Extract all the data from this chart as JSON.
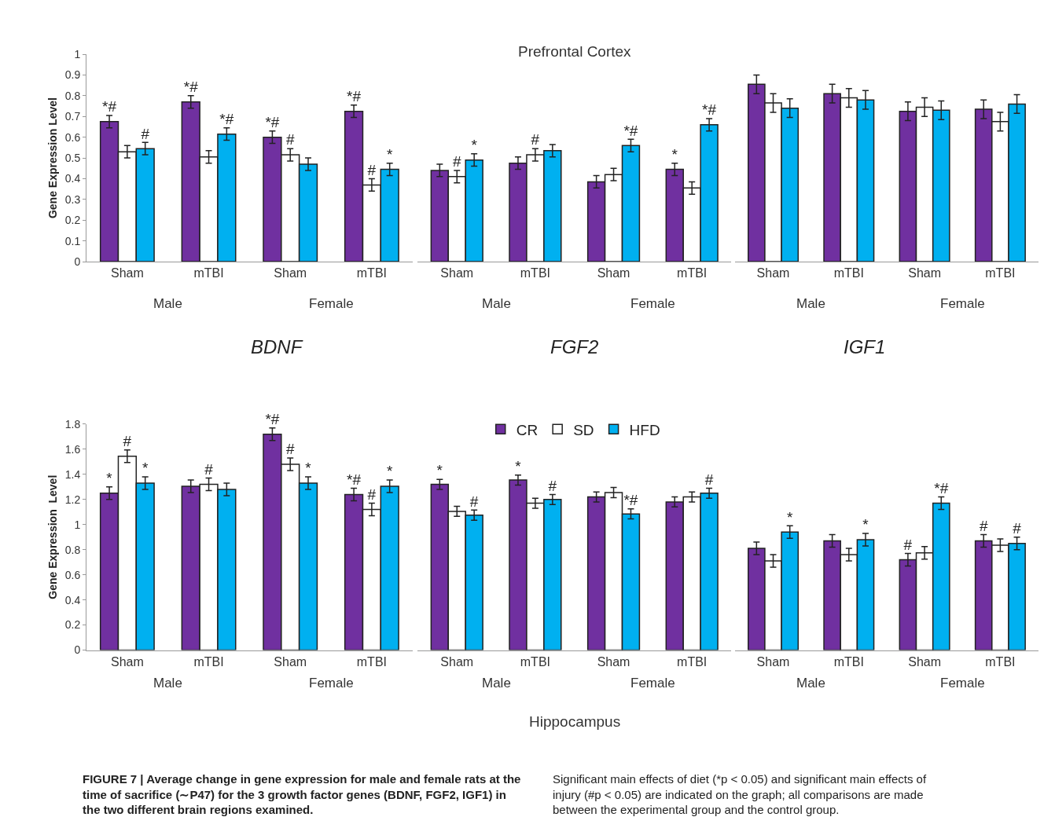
{
  "chart_data": [
    {
      "type": "bar",
      "ylabel": "Gene Expression Level",
      "xlabel": "BDNF",
      "categories": [
        "Sham",
        "mTBI",
        "Sham",
        "mTBI"
      ],
      "ylim": [
        0,
        1
      ],
      "yticks": [
        0,
        0.1,
        0.2,
        0.3,
        0.4,
        0.5,
        0.6,
        0.7,
        0.8,
        0.9,
        1
      ],
      "annotations": [
        "Male",
        "Female"
      ],
      "series": [
        {
          "color": "#7030a0",
          "values": [
            0.675,
            0.77,
            0.6,
            0.725
          ],
          "errors": [
            0.03,
            0.03,
            0.03,
            0.03
          ],
          "value_labels": [
            "*#",
            "*#",
            "*#",
            "*#"
          ]
        },
        {
          "color": "#ffffff",
          "values": [
            0.53,
            0.505,
            0.515,
            0.37
          ],
          "errors": [
            0.03,
            0.03,
            0.03,
            0.03
          ],
          "value_labels": [
            null,
            null,
            "#",
            "#"
          ]
        },
        {
          "color": "#00b0f0",
          "values": [
            0.545,
            0.615,
            0.47,
            0.445
          ],
          "errors": [
            0.03,
            0.03,
            0.03,
            0.03
          ],
          "value_labels": [
            "#",
            "*#",
            null,
            "*"
          ]
        }
      ]
    },
    {
      "type": "bar",
      "title": "Prefrontal Cortex",
      "xlabel": "FGF2",
      "categories": [
        "Sham",
        "mTBI",
        "Sham",
        "mTBI"
      ],
      "ylim": [
        0,
        1
      ],
      "yticks": [
        0,
        0.1,
        0.2,
        0.3,
        0.4,
        0.5,
        0.6,
        0.7,
        0.8,
        0.9,
        1
      ],
      "tick_labels": "x",
      "annotations": [
        "Male",
        "Female"
      ],
      "series": [
        {
          "color": "#7030a0",
          "values": [
            0.44,
            0.475,
            0.385,
            0.445
          ],
          "errors": [
            0.03,
            0.03,
            0.03,
            0.03
          ],
          "value_labels": [
            null,
            null,
            null,
            "*"
          ]
        },
        {
          "color": "#ffffff",
          "values": [
            0.41,
            0.515,
            0.42,
            0.355
          ],
          "errors": [
            0.03,
            0.03,
            0.03,
            0.03
          ],
          "value_labels": [
            "#",
            "#",
            null,
            null
          ]
        },
        {
          "color": "#00b0f0",
          "values": [
            0.49,
            0.535,
            0.56,
            0.66
          ],
          "errors": [
            0.03,
            0.03,
            0.03,
            0.03
          ],
          "value_labels": [
            "*",
            null,
            "*#",
            "*#"
          ]
        }
      ]
    },
    {
      "type": "bar",
      "xlabel": "IGF1",
      "categories": [
        "Sham",
        "mTBI",
        "Sham",
        "mTBI"
      ],
      "ylim": [
        0,
        1
      ],
      "yticks": [
        0,
        0.1,
        0.2,
        0.3,
        0.4,
        0.5,
        0.6,
        0.7,
        0.8,
        0.9,
        1
      ],
      "tick_labels": "x",
      "annotations": [
        "Male",
        "Female"
      ],
      "series": [
        {
          "color": "#7030a0",
          "values": [
            0.855,
            0.81,
            0.725,
            0.735
          ],
          "errors": [
            0.045,
            0.045,
            0.045,
            0.045
          ]
        },
        {
          "color": "#ffffff",
          "values": [
            0.765,
            0.79,
            0.745,
            0.675
          ],
          "errors": [
            0.045,
            0.045,
            0.045,
            0.045
          ]
        },
        {
          "color": "#00b0f0",
          "values": [
            0.74,
            0.78,
            0.73,
            0.76
          ],
          "errors": [
            0.045,
            0.045,
            0.045,
            0.045
          ]
        }
      ]
    },
    {
      "type": "bar",
      "ylabel": "Gene Expression  Level",
      "categories": [
        "Sham",
        "mTBI",
        "Sham",
        "mTBI"
      ],
      "ylim": [
        0,
        1.8
      ],
      "yticks": [
        0,
        0.2,
        0.4,
        0.6,
        0.8,
        1,
        1.2,
        1.4,
        1.6,
        1.8
      ],
      "annotations": [
        "Male",
        "Female",
        "FIGURE 7 | Average change in gene expression for male and female rats at the time of sacrifice (∼P47) for the 3 growth factor genes (BDNF, FGF2, IGF1) in the two different brain regions examined.",
        "Significant main effects of diet (*p < 0.05) and significant main effects of injury (#p < 0.05) are indicated on the graph; all comparisons are made between the experimental group and the control group."
      ],
      "series": [
        {
          "color": "#7030a0",
          "values": [
            1.25,
            1.305,
            1.72,
            1.24
          ],
          "errors": [
            0.05,
            0.05,
            0.05,
            0.05
          ],
          "value_labels": [
            "*",
            null,
            "*#",
            "*#"
          ]
        },
        {
          "color": "#ffffff",
          "values": [
            1.545,
            1.32,
            1.48,
            1.12
          ],
          "errors": [
            0.05,
            0.05,
            0.05,
            0.05
          ],
          "value_labels": [
            "#",
            "#",
            "#",
            "#"
          ]
        },
        {
          "color": "#00b0f0",
          "values": [
            1.33,
            1.28,
            1.33,
            1.305
          ],
          "errors": [
            0.05,
            0.05,
            0.05,
            0.05
          ],
          "value_labels": [
            "*",
            null,
            "*",
            "*"
          ]
        }
      ]
    },
    {
      "type": "bar",
      "xlabel": "Hippocampus",
      "categories": [
        "Sham",
        "mTBI",
        "Sham",
        "mTBI"
      ],
      "ylim": [
        0,
        1.8
      ],
      "yticks": [
        0,
        0.2,
        0.4,
        0.6,
        0.8,
        1,
        1.2,
        1.4,
        1.6,
        1.8
      ],
      "tick_labels": "x",
      "legend": "top",
      "annotations": [
        "Male",
        "Female"
      ],
      "series": [
        {
          "name": "CR",
          "color": "#7030a0",
          "values": [
            1.32,
            1.355,
            1.22,
            1.18
          ],
          "errors": [
            0.04,
            0.04,
            0.04,
            0.04
          ],
          "value_labels": [
            "*",
            "*",
            null,
            null
          ]
        },
        {
          "name": "SD",
          "color": "#ffffff",
          "values": [
            1.105,
            1.17,
            1.255,
            1.22
          ],
          "errors": [
            0.04,
            0.04,
            0.04,
            0.04
          ]
        },
        {
          "name": "HFD",
          "color": "#00b0f0",
          "values": [
            1.075,
            1.2,
            1.085,
            1.25
          ],
          "errors": [
            0.04,
            0.04,
            0.04,
            0.04
          ],
          "value_labels": [
            "#",
            "#",
            "*#",
            "#"
          ]
        }
      ]
    },
    {
      "type": "bar",
      "categories": [
        "Sham",
        "mTBI",
        "Sham",
        "mTBI"
      ],
      "ylim": [
        0,
        1.8
      ],
      "yticks": [
        0,
        0.2,
        0.4,
        0.6,
        0.8,
        1,
        1.2,
        1.4,
        1.6,
        1.8
      ],
      "tick_labels": "x",
      "annotations": [
        "Male",
        "Female"
      ],
      "series": [
        {
          "color": "#7030a0",
          "values": [
            0.81,
            0.87,
            0.72,
            0.87
          ],
          "errors": [
            0.05,
            0.05,
            0.05,
            0.05
          ],
          "value_labels": [
            null,
            null,
            "#",
            "#"
          ]
        },
        {
          "color": "#ffffff",
          "values": [
            0.71,
            0.76,
            0.775,
            0.835
          ],
          "errors": [
            0.05,
            0.05,
            0.05,
            0.05
          ]
        },
        {
          "color": "#00b0f0",
          "values": [
            0.94,
            0.88,
            1.17,
            0.85
          ],
          "errors": [
            0.05,
            0.05,
            0.05,
            0.05
          ],
          "value_labels": [
            "*",
            "*",
            "*#",
            "#"
          ]
        }
      ]
    }
  ]
}
